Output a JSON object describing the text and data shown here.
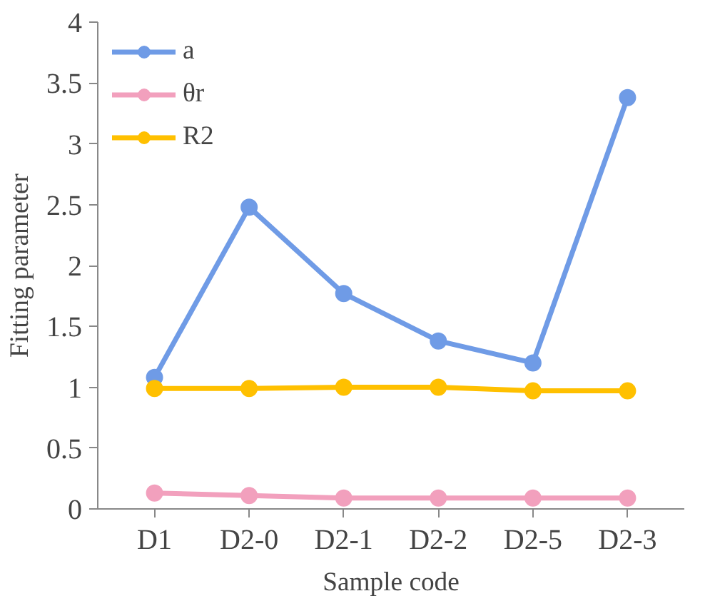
{
  "chart_data": {
    "type": "line",
    "xlabel": "Sample code",
    "ylabel": "Fitting parameter",
    "categories": [
      "D1",
      "D2-0",
      "D2-1",
      "D2-2",
      "D2-5",
      "D2-3"
    ],
    "series": [
      {
        "name": "a",
        "color": "#6f9be6",
        "values": [
          1.08,
          2.48,
          1.77,
          1.38,
          1.2,
          3.38
        ]
      },
      {
        "name": "θr",
        "color": "#f2a0bd",
        "values": [
          0.13,
          0.11,
          0.09,
          0.09,
          0.09,
          0.09
        ]
      },
      {
        "name": "R2",
        "color": "#ffc000",
        "values": [
          0.99,
          0.99,
          1.0,
          1.0,
          0.97,
          0.97
        ]
      }
    ],
    "ylim": [
      0,
      4
    ],
    "yticks": [
      0,
      0.5,
      1,
      1.5,
      2,
      2.5,
      3,
      3.5,
      4
    ],
    "grid": false,
    "legend": "top left",
    "marker": "circle",
    "line_style": "solid"
  }
}
